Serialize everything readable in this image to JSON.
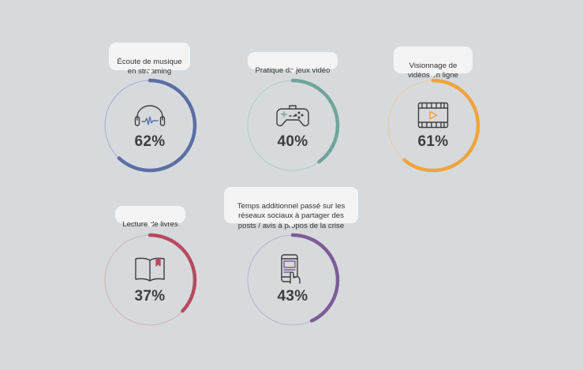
{
  "items": [
    {
      "label": "Écoute de musique\nen streaming",
      "value": 62,
      "percent_text": "62%",
      "color": "#5b6fa6",
      "icon": "headphones-icon"
    },
    {
      "label": "Pratique de jeux vidéo",
      "value": 40,
      "percent_text": "40%",
      "color": "#6fa59c",
      "icon": "gamepad-icon"
    },
    {
      "label": "Visionnage de\nvidéos en ligne",
      "value": 61,
      "percent_text": "61%",
      "color": "#f0a43b",
      "icon": "video-film-icon"
    },
    {
      "label": "Lecture de livres",
      "value": 37,
      "percent_text": "37%",
      "color": "#b8495f",
      "icon": "book-icon"
    },
    {
      "label": "Temps additionnel passé sur les\nréseaux sociaux à partager des\nposts / avis à propos de la crise",
      "value": 43,
      "percent_text": "43%",
      "color": "#7d5c98",
      "icon": "smartphone-touch-icon"
    }
  ]
}
